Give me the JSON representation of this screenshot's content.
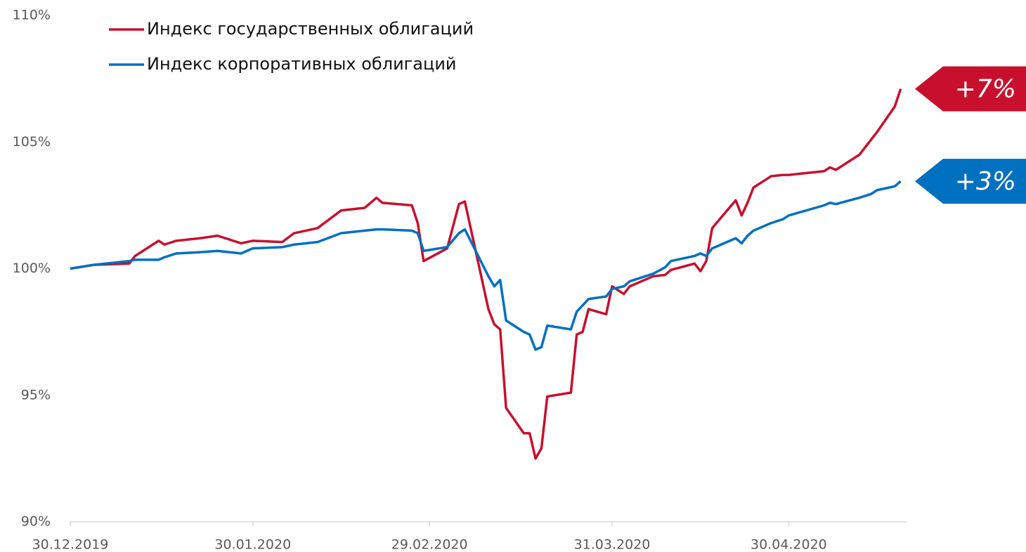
{
  "chart_data": {
    "type": "line",
    "x": [
      "30.12.2019",
      "03.01.2020",
      "09.01.2020",
      "10.01.2020",
      "14.01.2020",
      "15.01.2020",
      "17.01.2020",
      "21.01.2020",
      "24.01.2020",
      "28.01.2020",
      "30.01.2020",
      "04.02.2020",
      "06.02.2020",
      "10.02.2020",
      "14.02.2020",
      "18.02.2020",
      "20.02.2020",
      "21.02.2020",
      "26.02.2020",
      "27.02.2020",
      "28.02.2020",
      "03.03.2020",
      "05.03.2020",
      "06.03.2020",
      "10.03.2020",
      "11.03.2020",
      "12.03.2020",
      "13.03.2020",
      "16.03.2020",
      "17.03.2020",
      "18.03.2020",
      "19.03.2020",
      "20.03.2020",
      "24.03.2020",
      "25.03.2020",
      "26.03.2020",
      "27.03.2020",
      "30.03.2020",
      "31.03.2020",
      "02.04.2020",
      "03.04.2020",
      "07.04.2020",
      "09.04.2020",
      "10.04.2020",
      "14.04.2020",
      "15.04.2020",
      "16.04.2020",
      "17.04.2020",
      "21.04.2020",
      "22.04.2020",
      "23.04.2020",
      "24.04.2020",
      "27.04.2020",
      "29.04.2020",
      "30.04.2020",
      "06.05.2020",
      "07.05.2020",
      "08.05.2020",
      "12.05.2020",
      "14.05.2020",
      "15.05.2020",
      "18.05.2020",
      "19.05.2020"
    ],
    "series": [
      {
        "name": "Индекс государственных облигаций",
        "color": "#c8102e",
        "values": [
          100,
          100.15,
          100.2,
          100.5,
          101.1,
          100.95,
          101.1,
          101.2,
          101.3,
          101.0,
          101.1,
          101.05,
          101.4,
          101.6,
          102.3,
          102.4,
          102.8,
          102.6,
          102.5,
          101.8,
          100.3,
          100.8,
          102.55,
          102.65,
          98.4,
          97.8,
          97.6,
          94.5,
          93.5,
          93.5,
          92.5,
          92.9,
          94.95,
          95.1,
          97.4,
          97.5,
          98.4,
          98.2,
          99.3,
          99.0,
          99.3,
          99.7,
          99.75,
          99.95,
          100.2,
          99.9,
          100.3,
          101.6,
          102.7,
          102.1,
          102.6,
          103.2,
          103.65,
          103.7,
          103.7,
          103.85,
          104.0,
          103.9,
          104.5,
          105.1,
          105.4,
          106.4,
          107.1
        ]
      },
      {
        "name": "Индекс корпоративных облигаций",
        "color": "#0070c0",
        "values": [
          100,
          100.15,
          100.3,
          100.35,
          100.35,
          100.45,
          100.6,
          100.65,
          100.7,
          100.6,
          100.8,
          100.85,
          100.95,
          101.05,
          101.4,
          101.5,
          101.55,
          101.55,
          101.5,
          101.4,
          100.7,
          100.85,
          101.4,
          101.55,
          99.7,
          99.3,
          99.55,
          97.95,
          97.5,
          97.4,
          96.8,
          96.9,
          97.75,
          97.6,
          98.3,
          98.55,
          98.8,
          98.9,
          99.2,
          99.3,
          99.5,
          99.8,
          100.05,
          100.3,
          100.5,
          100.6,
          100.5,
          100.8,
          101.2,
          101.0,
          101.3,
          101.5,
          101.8,
          101.95,
          102.1,
          102.5,
          102.6,
          102.55,
          102.8,
          102.95,
          103.1,
          103.25,
          103.45
        ]
      }
    ],
    "annotations": [
      "+7%",
      "+3%"
    ],
    "xlim": [
      "30.12.2019",
      "20.05.2020"
    ],
    "xticks": [
      "30.12.2019",
      "30.01.2020",
      "29.02.2020",
      "31.03.2020",
      "30.04.2020"
    ],
    "ylim": [
      90,
      110
    ],
    "yticks": [
      {
        "value": 90,
        "label": "90%"
      },
      {
        "value": 95,
        "label": "95%"
      },
      {
        "value": 100,
        "label": "100%"
      },
      {
        "value": 105,
        "label": "105%"
      },
      {
        "value": 110,
        "label": "110%"
      }
    ],
    "legend": "upper left",
    "grid": false
  }
}
